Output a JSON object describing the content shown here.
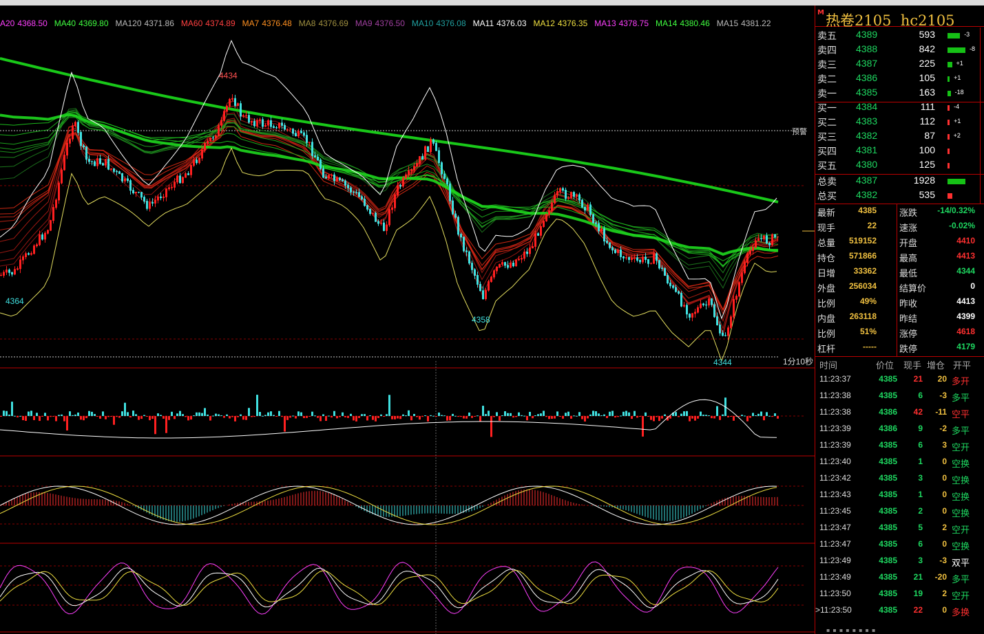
{
  "ma_labels": [
    {
      "name": "A20",
      "value": "4368.50",
      "color": "#ff40ff"
    },
    {
      "name": "MA40",
      "value": "4369.80",
      "color": "#40ff40"
    },
    {
      "name": "MA120",
      "value": "4371.86",
      "color": "#bbbbbb"
    },
    {
      "name": "MA60",
      "value": "4374.89",
      "color": "#ff4040"
    },
    {
      "name": "MA7",
      "value": "4376.48",
      "color": "#ff9020"
    },
    {
      "name": "MA8",
      "value": "4376.69",
      "color": "#a09040"
    },
    {
      "name": "MA9",
      "value": "4376.50",
      "color": "#a040a0"
    },
    {
      "name": "MA10",
      "value": "4376.08",
      "color": "#20a0a0"
    },
    {
      "name": "MA11",
      "value": "4376.03",
      "color": "#ffffff"
    },
    {
      "name": "MA12",
      "value": "4376.35",
      "color": "#f0e040"
    },
    {
      "name": "MA13",
      "value": "4378.75",
      "color": "#ff40ff"
    },
    {
      "name": "MA14",
      "value": "4380.46",
      "color": "#40ff40"
    },
    {
      "name": "MA15",
      "value": "4381.22",
      "color": "#bbbbbb"
    }
  ],
  "price_labels": {
    "high": "4434",
    "low_left": "4364",
    "low_mid": "4358",
    "low_right": "4344",
    "alert": "预警",
    "interval": "1分10秒"
  },
  "title": {
    "marker": "M",
    "name": "热卷2105",
    "code": "hc2105"
  },
  "order_book": {
    "asks": [
      {
        "label": "卖五",
        "price": "4389",
        "vol": "593",
        "chg": "-3",
        "bar": 0.7
      },
      {
        "label": "卖四",
        "price": "4388",
        "vol": "842",
        "chg": "-8",
        "bar": 1.0
      },
      {
        "label": "卖三",
        "price": "4387",
        "vol": "225",
        "chg": "+1",
        "bar": 0.25
      },
      {
        "label": "卖二",
        "price": "4386",
        "vol": "105",
        "chg": "+1",
        "bar": 0.12
      },
      {
        "label": "卖一",
        "price": "4385",
        "vol": "163",
        "chg": "-18",
        "bar": 0.18
      }
    ],
    "bids": [
      {
        "label": "买一",
        "price": "4384",
        "vol": "111",
        "chg": "-4",
        "bar": 0.12
      },
      {
        "label": "买二",
        "price": "4383",
        "vol": "112",
        "chg": "+1",
        "bar": 0.12
      },
      {
        "label": "买三",
        "price": "4382",
        "vol": "87",
        "chg": "+2",
        "bar": 0.1
      },
      {
        "label": "买四",
        "price": "4381",
        "vol": "100",
        "chg": "",
        "bar": 0.1
      },
      {
        "label": "买五",
        "price": "4380",
        "vol": "125",
        "chg": "",
        "bar": 0.12
      }
    ]
  },
  "totals": [
    {
      "label": "总卖",
      "price": "4387",
      "vol": "1928",
      "color": "#16c116",
      "bar": 1.0
    },
    {
      "label": "总买",
      "price": "4382",
      "vol": "535",
      "color": "#ff3030",
      "bar": 0.28
    }
  ],
  "stats": [
    {
      "l1": "最新",
      "v1": "4385",
      "l2": "涨跌",
      "v2": "-14/0.32%",
      "c2": "#1ed760"
    },
    {
      "l1": "现手",
      "v1": "22",
      "l2": "速涨",
      "v2": "-0.02%",
      "c2": "#1ed760"
    },
    {
      "l1": "总量",
      "v1": "519152",
      "l2": "开盘",
      "v2": "4410",
      "c2": "#ff3030"
    },
    {
      "l1": "持仓",
      "v1": "571866",
      "l2": "最高",
      "v2": "4413",
      "c2": "#ff3030"
    },
    {
      "l1": "日增",
      "v1": "33362",
      "l2": "最低",
      "v2": "4344",
      "c2": "#1ed760"
    },
    {
      "l1": "外盘",
      "v1": "256034",
      "l2": "结算价",
      "v2": "0",
      "c2": "#ffffff"
    },
    {
      "l1": "比例",
      "v1": "49%",
      "l2": "昨收",
      "v2": "4413",
      "c2": "#ffffff"
    },
    {
      "l1": "内盘",
      "v1": "263118",
      "l2": "昨结",
      "v2": "4399",
      "c2": "#ffffff"
    },
    {
      "l1": "比例",
      "v1": "51%",
      "l2": "涨停",
      "v2": "4618",
      "c2": "#ff3030"
    },
    {
      "l1": "杠杆",
      "v1": "-----",
      "l2": "跌停",
      "v2": "4179",
      "c2": "#1ed760"
    }
  ],
  "ticks_header": {
    "time": "时间",
    "price": "价位",
    "vol": "现手",
    "oi": "增仓",
    "type": "开平"
  },
  "ticks": [
    {
      "time": "11:23:37",
      "price": "4385",
      "vol": "21",
      "oi": "20",
      "type": "多开",
      "vc": "#ff3030",
      "tc": "#ff3030"
    },
    {
      "time": "11:23:38",
      "price": "4385",
      "vol": "6",
      "oi": "-3",
      "type": "多平",
      "vc": "#1ed760",
      "tc": "#1ed760"
    },
    {
      "time": "11:23:38",
      "price": "4386",
      "vol": "42",
      "oi": "-11",
      "type": "空平",
      "vc": "#ff3030",
      "tc": "#ff3030"
    },
    {
      "time": "11:23:39",
      "price": "4386",
      "vol": "9",
      "oi": "-2",
      "type": "多平",
      "vc": "#1ed760",
      "tc": "#1ed760"
    },
    {
      "time": "11:23:39",
      "price": "4385",
      "vol": "6",
      "oi": "3",
      "type": "空开",
      "vc": "#1ed760",
      "tc": "#1ed760"
    },
    {
      "time": "11:23:40",
      "price": "4385",
      "vol": "1",
      "oi": "0",
      "type": "空换",
      "vc": "#1ed760",
      "tc": "#1ed760"
    },
    {
      "time": "11:23:42",
      "price": "4385",
      "vol": "3",
      "oi": "0",
      "type": "空换",
      "vc": "#1ed760",
      "tc": "#1ed760"
    },
    {
      "time": "11:23:43",
      "price": "4385",
      "vol": "1",
      "oi": "0",
      "type": "空换",
      "vc": "#1ed760",
      "tc": "#1ed760"
    },
    {
      "time": "11:23:45",
      "price": "4385",
      "vol": "2",
      "oi": "0",
      "type": "空换",
      "vc": "#1ed760",
      "tc": "#1ed760"
    },
    {
      "time": "11:23:47",
      "price": "4385",
      "vol": "5",
      "oi": "2",
      "type": "空开",
      "vc": "#1ed760",
      "tc": "#1ed760"
    },
    {
      "time": "11:23:47",
      "price": "4385",
      "vol": "6",
      "oi": "0",
      "type": "空换",
      "vc": "#1ed760",
      "tc": "#1ed760"
    },
    {
      "time": "11:23:49",
      "price": "4385",
      "vol": "3",
      "oi": "-3",
      "type": "双平",
      "vc": "#1ed760",
      "tc": "#ffffff"
    },
    {
      "time": "11:23:49",
      "price": "4385",
      "vol": "21",
      "oi": "-20",
      "type": "多平",
      "vc": "#1ed760",
      "tc": "#1ed760"
    },
    {
      "time": "11:23:50",
      "price": "4385",
      "vol": "19",
      "oi": "2",
      "type": "空开",
      "vc": "#1ed760",
      "tc": "#1ed760"
    },
    {
      "time": ">11:23:50",
      "price": "4385",
      "vol": "22",
      "oi": "0",
      "type": "多换",
      "vc": "#ff3030",
      "tc": "#ff3030"
    }
  ]
}
